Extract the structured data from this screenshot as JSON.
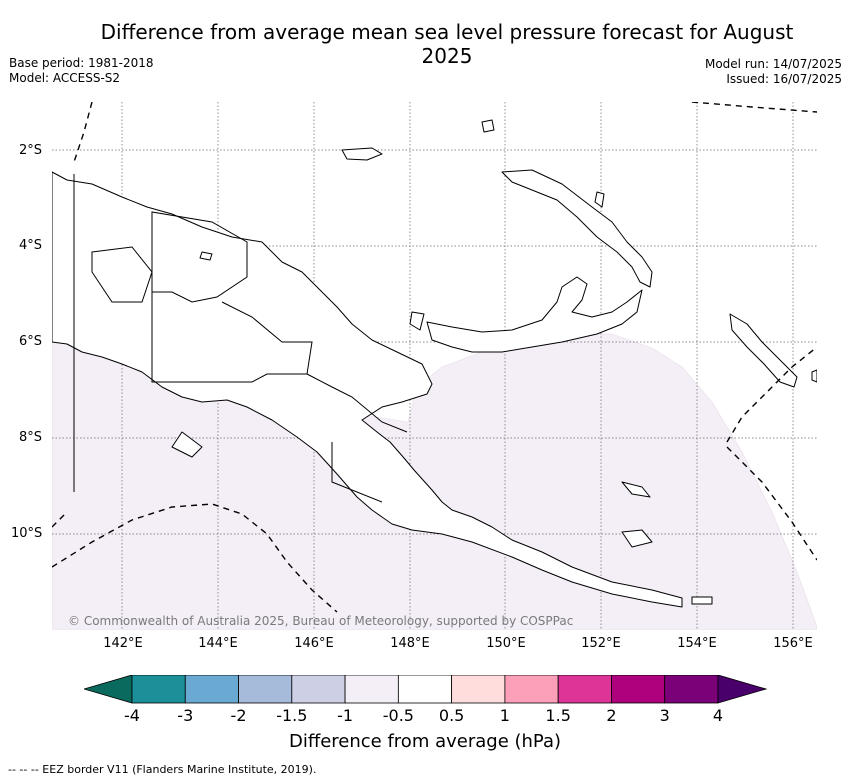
{
  "title": "Difference from average mean sea level pressure forecast for August 2025",
  "meta_left": {
    "base_period": "Base period: 1981-2018",
    "model": "Model: ACCESS-S2"
  },
  "meta_right": {
    "model_run": "Model run: 14/07/2025",
    "issued": "Issued: 16/07/2025"
  },
  "copyright": "© Commonwealth of Australia 2025, Bureau of Meteorology, supported by COSPPac",
  "lat_ticks": [
    "2°S",
    "4°S",
    "6°S",
    "8°S",
    "10°S"
  ],
  "lon_ticks": [
    "142°E",
    "144°E",
    "146°E",
    "148°E",
    "150°E",
    "152°E",
    "154°E",
    "156°E"
  ],
  "colorbar": {
    "label": "Difference from average (hPa)",
    "ticks": [
      "-4",
      "-3",
      "-2",
      "-1.5",
      "-1",
      "-0.5",
      "0.5",
      "1",
      "1.5",
      "2",
      "3",
      "4"
    ],
    "colors": [
      "#1b9099",
      "#6aaad2",
      "#a6bad9",
      "#cdd0e5",
      "#f4eef6",
      "#ffffff",
      "#ffdddd",
      "#fba0b8",
      "#dd3497",
      "#ae017e",
      "#7a0177"
    ],
    "low_extend": "#0b6a5e",
    "high_extend": "#49006a"
  },
  "shaded_value_color": "#f4eef6",
  "footnote": "-- -- -- EEZ border V11 (Flanders Marine Institute, 2019)."
}
